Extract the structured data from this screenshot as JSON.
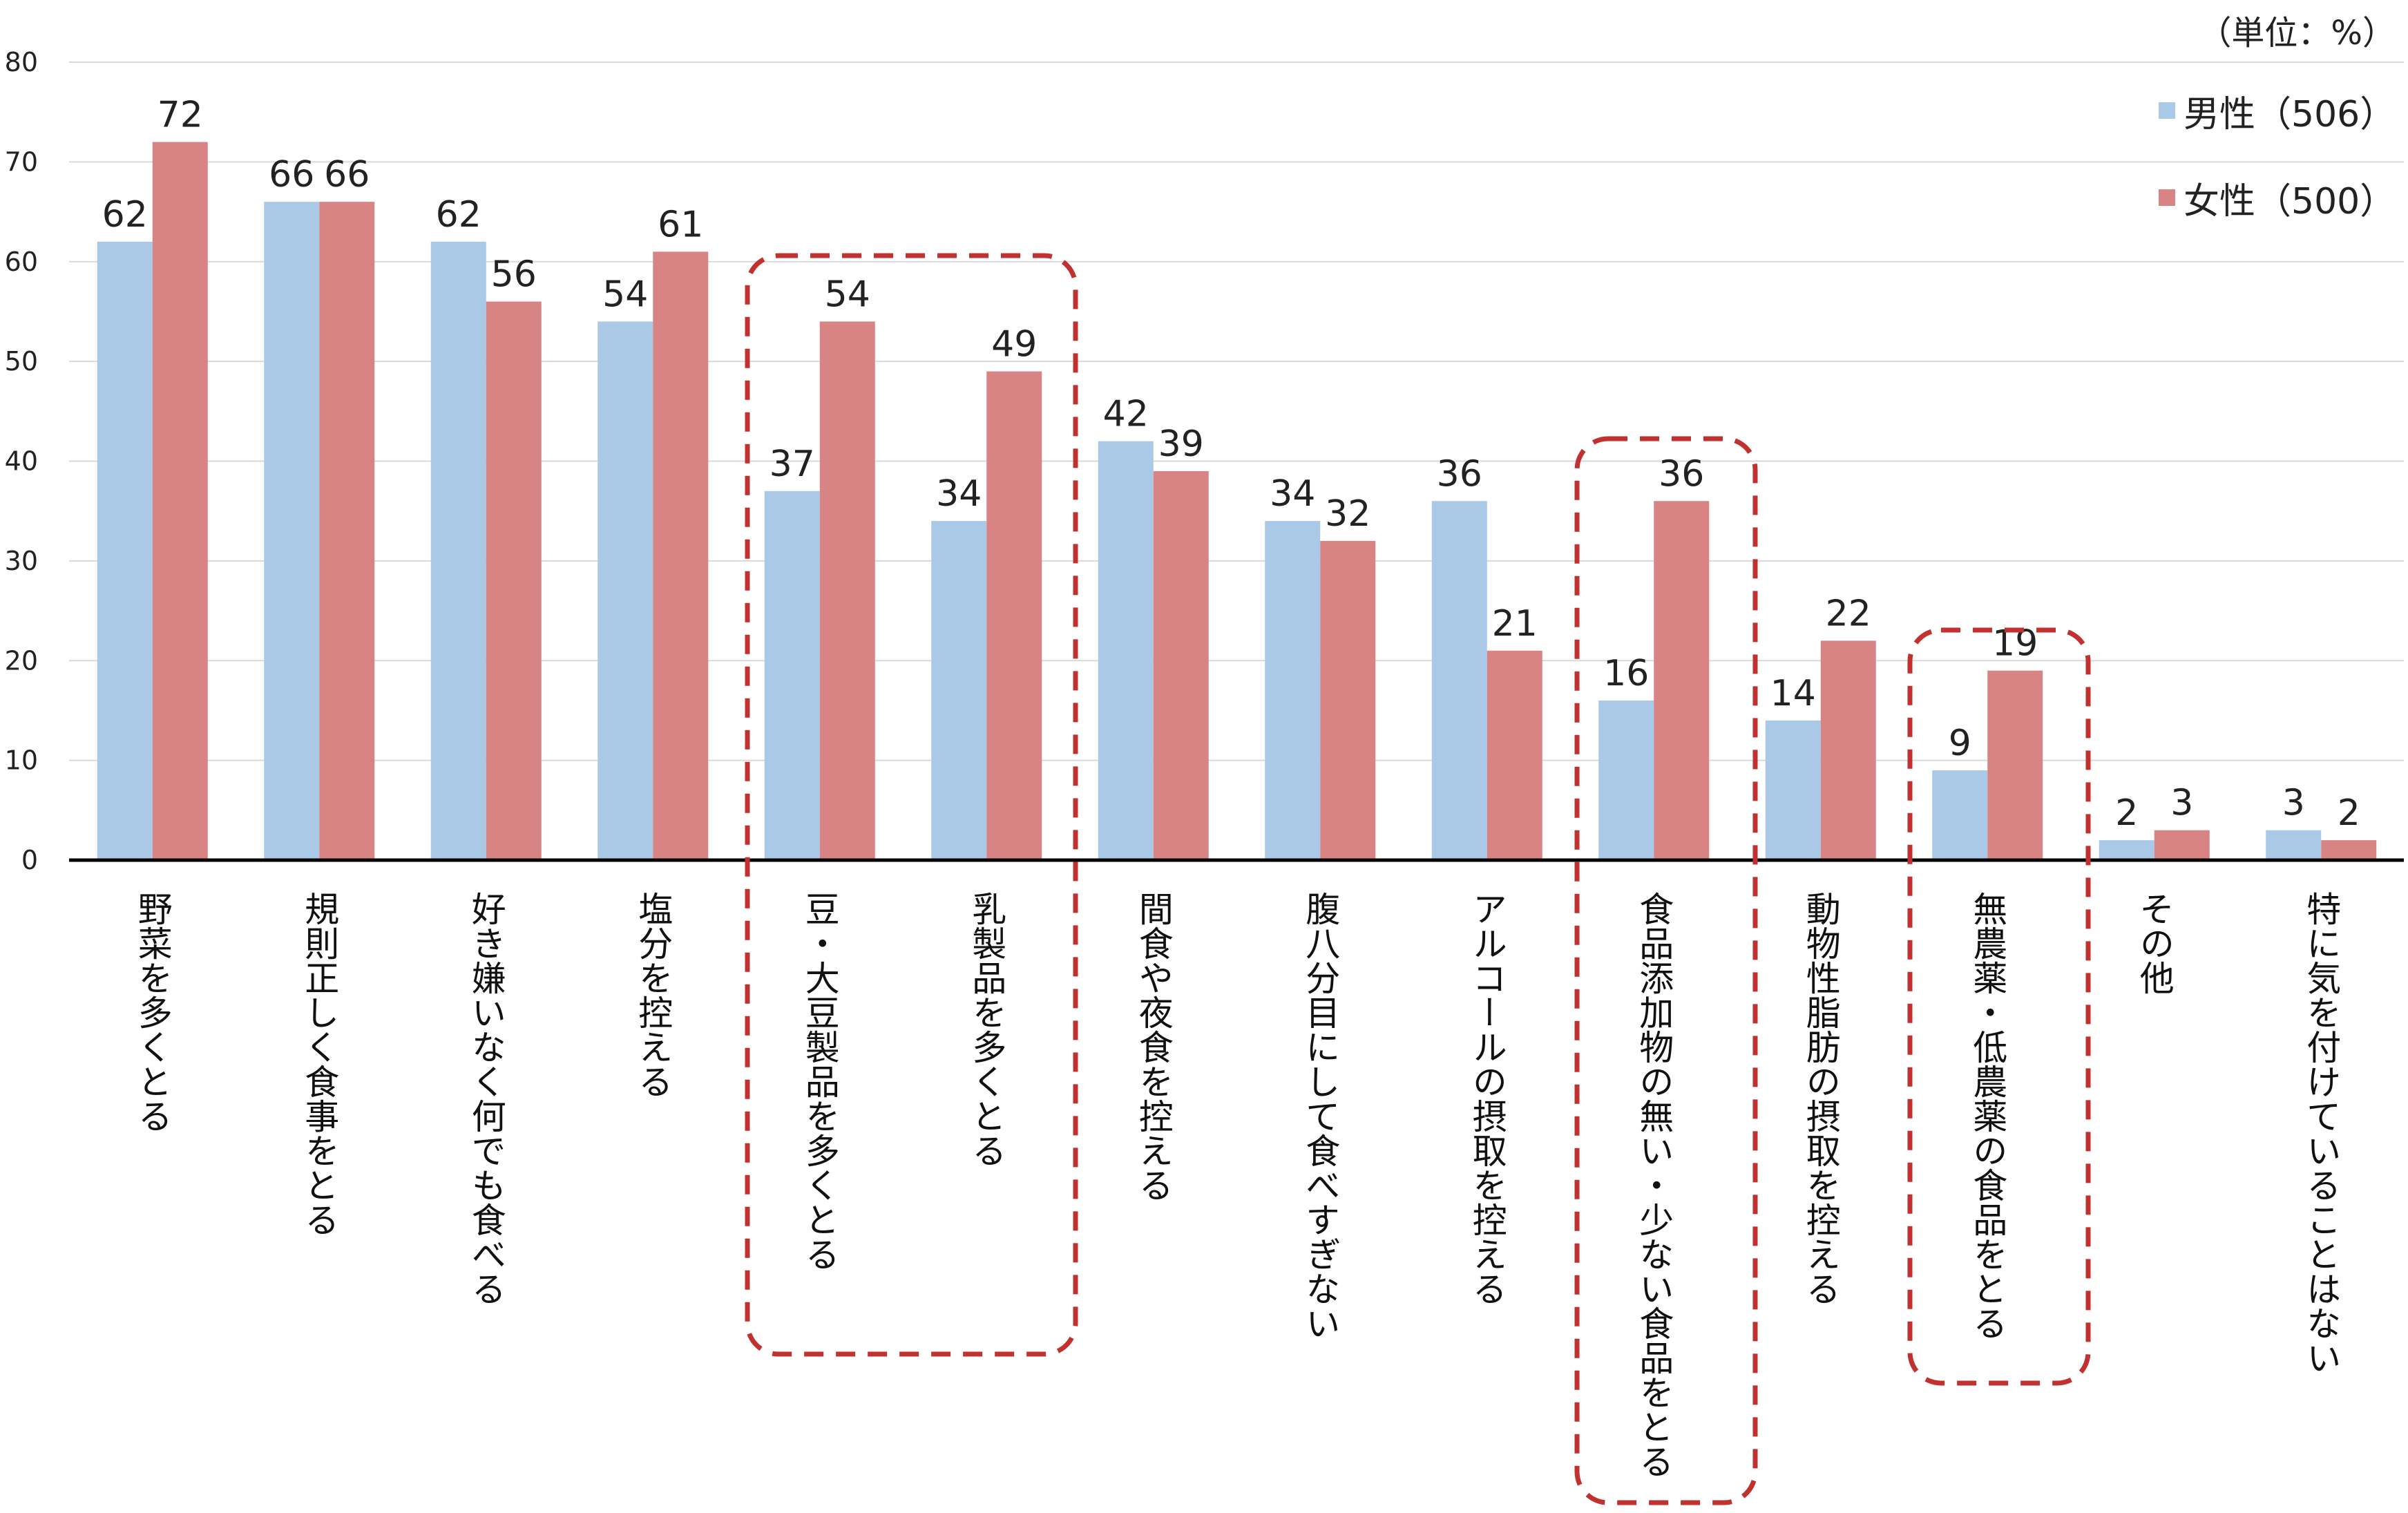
{
  "unit_label": "（単位：%）",
  "colors": {
    "male": "#A9C9E6",
    "female": "#D98484",
    "frame": "#C0312F",
    "grid": "#D9D9D9",
    "axis": "#000000"
  },
  "chart_data": {
    "type": "bar",
    "title": "",
    "xlabel": "",
    "ylabel": "",
    "ylim": [
      0,
      80
    ],
    "yticks": [
      0,
      10,
      20,
      30,
      40,
      50,
      60,
      70,
      80
    ],
    "grid": true,
    "legend_position": "top-right",
    "categories": [
      "野菜を多くとる",
      "規則正しく食事をとる",
      "好き嫌いなく何でも食べる",
      "塩分を控える",
      "豆・大豆製品を多くとる",
      "乳製品を多くとる",
      "間食や夜食を控える",
      "腹八分目にして食べすぎない",
      "アルコールの摂取を控える",
      "食品添加物の無い・少ない食品をとる",
      "動物性脂肪の摂取を控える",
      "無農薬・低農薬の食品をとる",
      "その他",
      "特に気を付けていることはない"
    ],
    "series": [
      {
        "name": "男性（506）",
        "values": [
          62,
          66,
          62,
          54,
          37,
          34,
          42,
          34,
          36,
          16,
          14,
          9,
          2,
          3
        ]
      },
      {
        "name": "女性（500）",
        "values": [
          72,
          66,
          56,
          61,
          54,
          49,
          39,
          32,
          21,
          36,
          22,
          19,
          3,
          2
        ]
      }
    ],
    "highlighted_groups": [
      [
        4,
        5
      ],
      [
        9
      ],
      [
        11
      ]
    ]
  }
}
